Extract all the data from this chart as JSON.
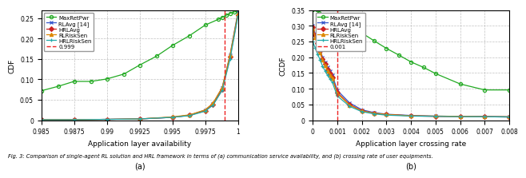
{
  "subplot_a": {
    "xlabel": "Application layer availability",
    "ylabel": "CDF",
    "xlim": [
      0.985,
      1.0
    ],
    "ylim": [
      0,
      0.27
    ],
    "xticks": [
      0.985,
      0.9875,
      0.99,
      0.9925,
      0.995,
      0.9975,
      1.0
    ],
    "xtick_labels": [
      "0.985",
      "0.9875",
      "0.99",
      "0.9925",
      "0.995",
      "0.9975",
      "1"
    ],
    "yticks": [
      0,
      0.05,
      0.1,
      0.15,
      0.2,
      0.25
    ],
    "ytick_labels": [
      "0",
      "0.05",
      "0.10",
      "0.15",
      "0.20",
      "0.25"
    ],
    "sublabel": "(a)",
    "vline_x": 0.999,
    "vline_label": "0.999",
    "series": {
      "MaxRetPwr": {
        "color": "#22aa22",
        "marker": "o",
        "x": [
          0.985,
          0.9863,
          0.9875,
          0.9888,
          0.99,
          0.9913,
          0.9925,
          0.9938,
          0.995,
          0.9963,
          0.9975,
          0.9985,
          0.9988,
          0.9991,
          0.9994,
          0.9997,
          1.0
        ],
        "y": [
          0.072,
          0.083,
          0.095,
          0.095,
          0.101,
          0.113,
          0.135,
          0.157,
          0.183,
          0.207,
          0.233,
          0.247,
          0.252,
          0.257,
          0.262,
          0.265,
          0.268
        ]
      },
      "RLAvg [14]": {
        "color": "#3355cc",
        "marker": "x",
        "x": [
          0.985,
          0.9875,
          0.99,
          0.9925,
          0.995,
          0.9963,
          0.9975,
          0.9981,
          0.9988,
          0.9994,
          1.0
        ],
        "y": [
          0.001,
          0.001,
          0.002,
          0.003,
          0.007,
          0.012,
          0.025,
          0.04,
          0.08,
          0.16,
          0.265
        ]
      },
      "HRLAvg": {
        "color": "#cc2222",
        "marker": "D",
        "x": [
          0.985,
          0.9875,
          0.99,
          0.9925,
          0.995,
          0.9963,
          0.9975,
          0.9981,
          0.9988,
          0.9994,
          1.0
        ],
        "y": [
          0.001,
          0.001,
          0.002,
          0.003,
          0.007,
          0.012,
          0.023,
          0.038,
          0.075,
          0.155,
          0.258
        ]
      },
      "RLRiskSen": {
        "color": "#dd8800",
        "marker": "^",
        "x": [
          0.985,
          0.9875,
          0.99,
          0.9925,
          0.995,
          0.9963,
          0.9975,
          0.9981,
          0.9988,
          0.9994,
          1.0
        ],
        "y": [
          0.001,
          0.001,
          0.002,
          0.003,
          0.008,
          0.013,
          0.025,
          0.042,
          0.08,
          0.16,
          0.262
        ]
      },
      "HRLRiskSen": {
        "color": "#22aaaa",
        "marker": "+",
        "x": [
          0.985,
          0.9875,
          0.99,
          0.9925,
          0.995,
          0.9963,
          0.9975,
          0.9981,
          0.9988,
          0.9994,
          1.0
        ],
        "y": [
          0.001,
          0.001,
          0.002,
          0.003,
          0.007,
          0.011,
          0.022,
          0.037,
          0.073,
          0.15,
          0.255
        ]
      }
    }
  },
  "subplot_b": {
    "xlabel": "Application layer crossing rate",
    "ylabel": "CCDF",
    "xlim": [
      0,
      0.008
    ],
    "ylim": [
      0,
      0.35
    ],
    "xticks": [
      0,
      0.001,
      0.002,
      0.003,
      0.004,
      0.005,
      0.006,
      0.007,
      0.008
    ],
    "xtick_labels": [
      "0",
      "0.001",
      "0.002",
      "0.003",
      "0.004",
      "0.005",
      "0.006",
      "0.007",
      "0.008"
    ],
    "yticks": [
      0,
      0.05,
      0.1,
      0.15,
      0.2,
      0.25,
      0.3,
      0.35
    ],
    "ytick_labels": [
      "0",
      "0.05",
      "0.10",
      "0.15",
      "0.20",
      "0.25",
      "0.30",
      "0.35"
    ],
    "sublabel": "(b)",
    "vline_x": 0.001,
    "vline_label": "0.001",
    "series": {
      "MaxRetPwr": {
        "color": "#22aa22",
        "marker": "o",
        "x": [
          0.0,
          0.00025,
          0.0005,
          0.00075,
          0.001,
          0.00125,
          0.0015,
          0.00175,
          0.002,
          0.0025,
          0.003,
          0.0035,
          0.004,
          0.0045,
          0.005,
          0.006,
          0.007,
          0.008
        ],
        "y": [
          0.352,
          0.342,
          0.33,
          0.318,
          0.305,
          0.294,
          0.285,
          0.278,
          0.277,
          0.252,
          0.228,
          0.207,
          0.185,
          0.168,
          0.148,
          0.115,
          0.096,
          0.096
        ]
      },
      "RLAvg [14]": {
        "color": "#3355cc",
        "marker": "x",
        "x": [
          0.0,
          0.0001,
          0.0002,
          0.0003,
          0.0004,
          0.0005,
          0.0006,
          0.0007,
          0.0008,
          0.001,
          0.0015,
          0.002,
          0.0025,
          0.003,
          0.004,
          0.005,
          0.006,
          0.007,
          0.008
        ],
        "y": [
          0.3,
          0.275,
          0.25,
          0.225,
          0.2,
          0.185,
          0.168,
          0.155,
          0.143,
          0.095,
          0.055,
          0.033,
          0.024,
          0.019,
          0.015,
          0.013,
          0.012,
          0.012,
          0.011
        ]
      },
      "HRLAvg": {
        "color": "#cc2222",
        "marker": "D",
        "x": [
          0.0,
          0.0001,
          0.0002,
          0.0003,
          0.0004,
          0.0005,
          0.0006,
          0.0007,
          0.0008,
          0.001,
          0.0015,
          0.002,
          0.0025,
          0.003,
          0.004,
          0.005,
          0.006,
          0.007,
          0.008
        ],
        "y": [
          0.295,
          0.27,
          0.245,
          0.22,
          0.195,
          0.178,
          0.161,
          0.148,
          0.136,
          0.088,
          0.05,
          0.03,
          0.022,
          0.018,
          0.014,
          0.012,
          0.011,
          0.011,
          0.01
        ]
      },
      "RLRiskSen": {
        "color": "#dd8800",
        "marker": "^",
        "x": [
          0.0,
          0.0001,
          0.0002,
          0.0003,
          0.0004,
          0.0005,
          0.0006,
          0.0007,
          0.0008,
          0.001,
          0.0015,
          0.002,
          0.0025,
          0.003,
          0.004,
          0.005,
          0.006,
          0.007,
          0.008
        ],
        "y": [
          0.29,
          0.263,
          0.238,
          0.214,
          0.192,
          0.174,
          0.157,
          0.144,
          0.132,
          0.085,
          0.048,
          0.029,
          0.022,
          0.018,
          0.014,
          0.013,
          0.012,
          0.011,
          0.011
        ]
      },
      "HRLRiskSen": {
        "color": "#22aaaa",
        "marker": "+",
        "x": [
          0.0,
          0.0001,
          0.0002,
          0.0003,
          0.0004,
          0.0005,
          0.0006,
          0.0007,
          0.0008,
          0.001,
          0.0015,
          0.002,
          0.0025,
          0.003,
          0.004,
          0.005,
          0.006,
          0.007,
          0.008
        ],
        "y": [
          0.25,
          0.23,
          0.21,
          0.192,
          0.172,
          0.157,
          0.143,
          0.131,
          0.12,
          0.077,
          0.044,
          0.027,
          0.02,
          0.016,
          0.013,
          0.012,
          0.011,
          0.011,
          0.01
        ]
      }
    }
  },
  "caption": "Fig. 3: Comparison of single-agent RL solution and HRL framework in terms of (a) communication service availability, and (b) crossing rate of user equipments.",
  "vline_color": "#ee2222",
  "background_color": "#ffffff",
  "grid_color": "#bbbbbb"
}
